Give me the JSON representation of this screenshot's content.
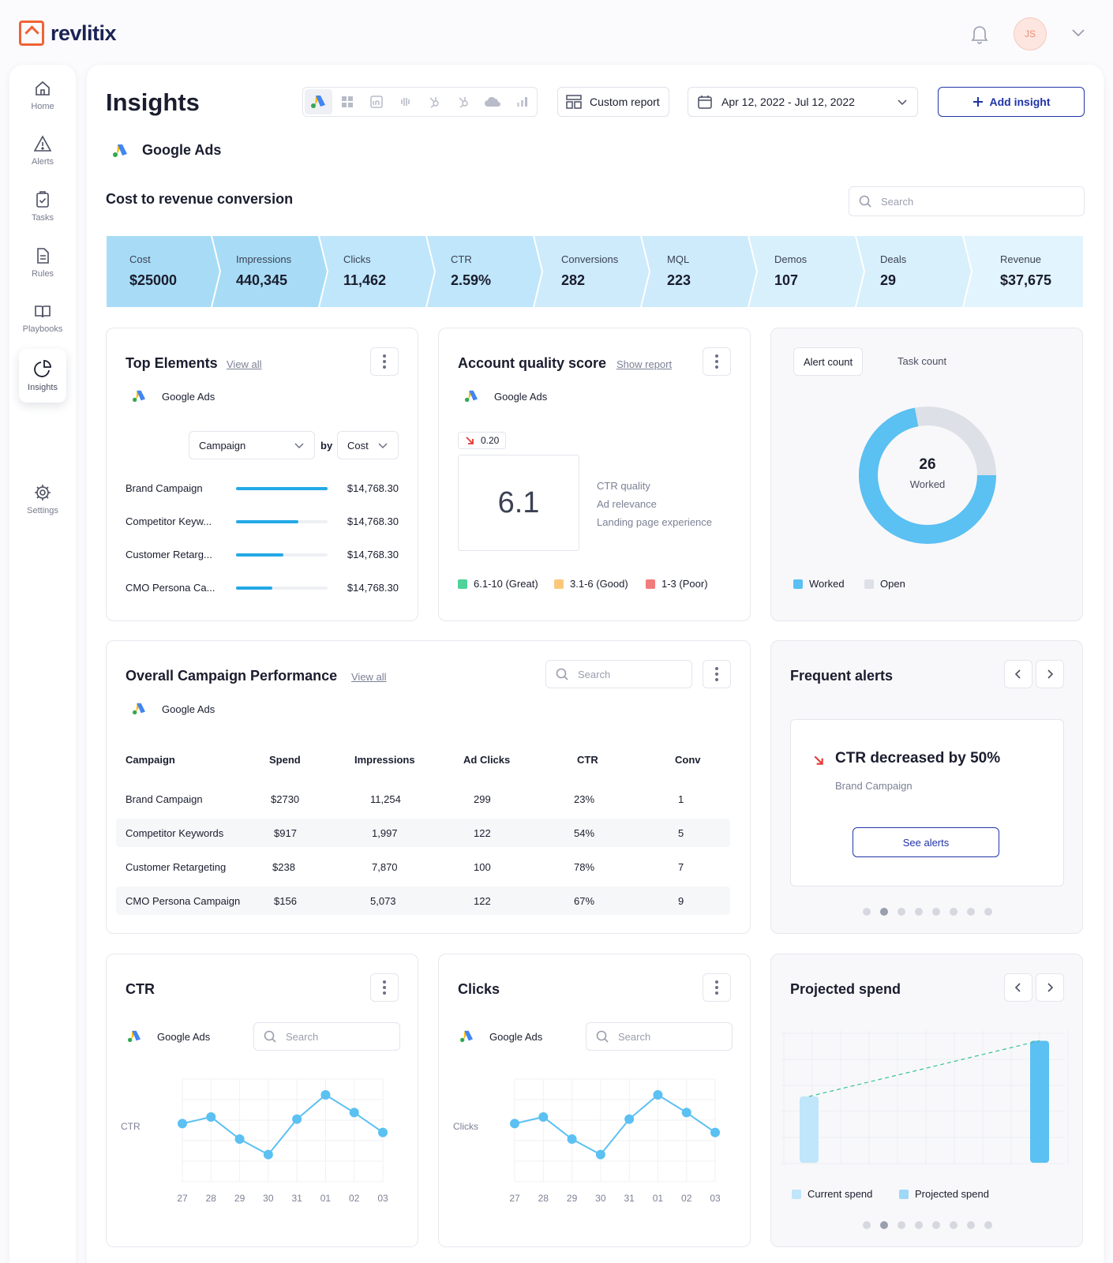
{
  "brand": {
    "name": "revlitix"
  },
  "header": {
    "avatar_initials": "JS"
  },
  "sidebar": {
    "items": [
      {
        "label": "Home",
        "icon": "home-icon"
      },
      {
        "label": "Alerts",
        "icon": "alert-icon"
      },
      {
        "label": "Tasks",
        "icon": "tasks-icon"
      },
      {
        "label": "Rules",
        "icon": "rules-icon"
      },
      {
        "label": "Playbooks",
        "icon": "playbooks-icon"
      },
      {
        "label": "Insights",
        "icon": "insights-icon",
        "active": true
      },
      {
        "label": "Settings",
        "icon": "settings-icon"
      }
    ]
  },
  "page": {
    "title": "Insights",
    "custom_report_label": "Custom report",
    "date_range": "Apr 12, 2022 - Jul 12, 2022",
    "add_insight_label": "Add insight",
    "source_title": "Google Ads",
    "section_title": "Cost to revenue conversion",
    "search_placeholder": "Search"
  },
  "funnel": [
    {
      "label": "Cost",
      "value": "$25000"
    },
    {
      "label": "Impressions",
      "value": "440,345"
    },
    {
      "label": "Clicks",
      "value": "11,462"
    },
    {
      "label": "CTR",
      "value": "2.59%"
    },
    {
      "label": "Conversions",
      "value": "282"
    },
    {
      "label": "MQL",
      "value": "223"
    },
    {
      "label": "Demos",
      "value": "107"
    },
    {
      "label": "Deals",
      "value": "29"
    },
    {
      "label": "Revenue",
      "value": "$37,675"
    }
  ],
  "top_elements": {
    "title": "Top Elements",
    "link": "View all",
    "source": "Google Ads",
    "group_select": "Campaign",
    "by_label": "by",
    "metric_select": "Cost",
    "rows": [
      {
        "name": "Brand Campaign",
        "value": "$14,768.30",
        "fill": 1.0
      },
      {
        "name": "Competitor Keyw...",
        "value": "$14,768.30",
        "fill": 0.68
      },
      {
        "name": "Customer Retarg...",
        "value": "$14,768.30",
        "fill": 0.52
      },
      {
        "name": "CMO Persona Ca...",
        "value": "$14,768.30",
        "fill": 0.4
      }
    ]
  },
  "quality": {
    "title": "Account quality score",
    "link": "Show report",
    "source": "Google Ads",
    "delta": "0.20",
    "score": "6.1",
    "factors": [
      "CTR quality",
      "Ad relevance",
      "Landing page experience"
    ],
    "legend": [
      {
        "label": "6.1-10 (Great)",
        "color": "#4fd39a"
      },
      {
        "label": "3.1-6 (Good)",
        "color": "#fbc87a"
      },
      {
        "label": "1-3 (Poor)",
        "color": "#f27b7b"
      }
    ]
  },
  "counts": {
    "tab_alert": "Alert count",
    "tab_task": "Task count",
    "center_value": "26",
    "center_label": "Worked",
    "worked_share": 0.72,
    "legend": [
      {
        "label": "Worked",
        "color": "#5bc0f2"
      },
      {
        "label": "Open",
        "color": "#dde0e7"
      }
    ]
  },
  "campaign_perf": {
    "title": "Overall Campaign Performance",
    "link": "View all",
    "source": "Google Ads",
    "search_placeholder": "Search",
    "headers": [
      "Campaign",
      "Spend",
      "Impressions",
      "Ad Clicks",
      "CTR",
      "Conv"
    ],
    "rows": [
      [
        "Brand Campaign",
        "$2730",
        "11,254",
        "299",
        "23%",
        "1"
      ],
      [
        "Competitor Keywords",
        "$917",
        "1,997",
        "122",
        "54%",
        "5"
      ],
      [
        "Customer Retargeting",
        "$238",
        "7,870",
        "100",
        "78%",
        "7"
      ],
      [
        "CMO Persona Campaign",
        "$156",
        "5,073",
        "122",
        "67%",
        "9"
      ]
    ]
  },
  "frequent_alerts": {
    "title": "Frequent alerts",
    "alert_title": "CTR decreased by 50%",
    "alert_sub": "Brand Campaign",
    "button": "See alerts",
    "pages": 8,
    "active_page": 1
  },
  "ctr_chart": {
    "title": "CTR",
    "source": "Google Ads",
    "search_placeholder": "Search",
    "ylabel": "CTR",
    "categories": [
      "27",
      "28",
      "29",
      "30",
      "31",
      "01",
      "02",
      "03"
    ],
    "values": [
      44,
      50,
      30,
      16,
      48,
      70,
      54,
      36
    ]
  },
  "clicks_chart": {
    "title": "Clicks",
    "source": "Google Ads",
    "search_placeholder": "Search",
    "ylabel": "Clicks",
    "categories": [
      "27",
      "28",
      "29",
      "30",
      "31",
      "01",
      "02",
      "03"
    ],
    "values": [
      44,
      50,
      30,
      16,
      48,
      70,
      54,
      36
    ]
  },
  "projected": {
    "title": "Projected spend",
    "legend": [
      {
        "label": "Current spend",
        "color": "#bfe6fb"
      },
      {
        "label": "Projected spend",
        "color": "#9fd8f7"
      }
    ],
    "current_value": 50,
    "projected_value": 92,
    "pages": 8,
    "active_page": 1
  },
  "chart_data": [
    {
      "type": "line",
      "title": "CTR",
      "ylabel": "CTR",
      "categories": [
        "27",
        "28",
        "29",
        "30",
        "31",
        "01",
        "02",
        "03"
      ],
      "values": [
        44,
        50,
        30,
        16,
        48,
        70,
        54,
        36
      ]
    },
    {
      "type": "line",
      "title": "Clicks",
      "ylabel": "Clicks",
      "categories": [
        "27",
        "28",
        "29",
        "30",
        "31",
        "01",
        "02",
        "03"
      ],
      "values": [
        44,
        50,
        30,
        16,
        48,
        70,
        54,
        36
      ]
    },
    {
      "type": "pie",
      "title": "Alert count",
      "categories": [
        "Worked",
        "Open"
      ],
      "values": [
        72,
        28
      ]
    },
    {
      "type": "bar",
      "title": "Projected spend",
      "categories": [
        "Current spend",
        "Projected spend"
      ],
      "values": [
        50,
        92
      ]
    }
  ]
}
